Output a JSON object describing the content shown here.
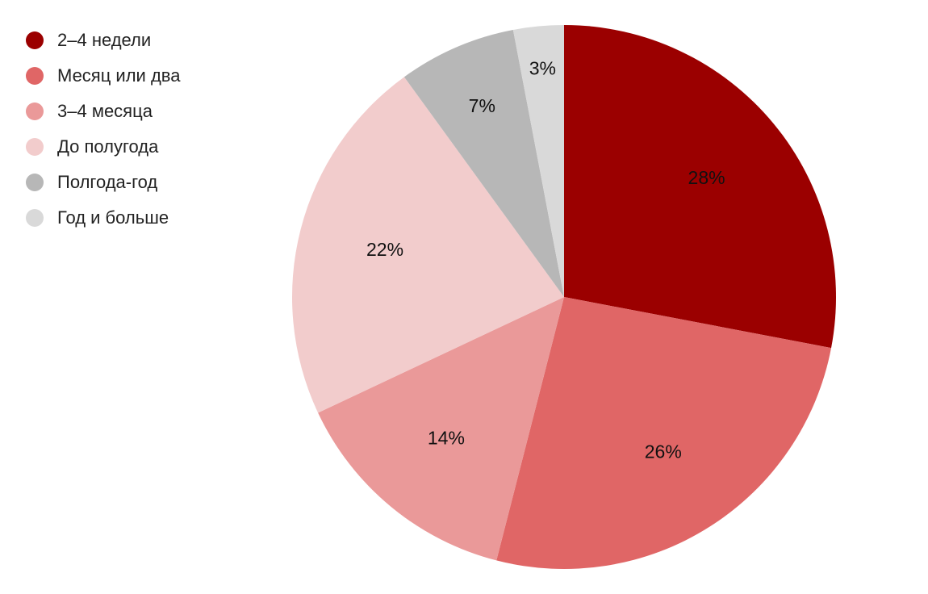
{
  "chart_data": {
    "type": "pie",
    "categories": [
      "2–4 недели",
      "Месяц или два",
      "3–4 месяца",
      "До полугода",
      "Полгода-год",
      "Год и больше"
    ],
    "values": [
      28,
      26,
      14,
      22,
      7,
      3
    ],
    "value_labels": [
      "28%",
      "26%",
      "14%",
      "22%",
      "7%",
      "3%"
    ],
    "colors": [
      "#9b0000",
      "#e06666",
      "#ea9999",
      "#f2cccc",
      "#b7b7b7",
      "#d9d9d9"
    ],
    "start": "top",
    "direction": "clockwise",
    "legend_position": "top-left"
  }
}
